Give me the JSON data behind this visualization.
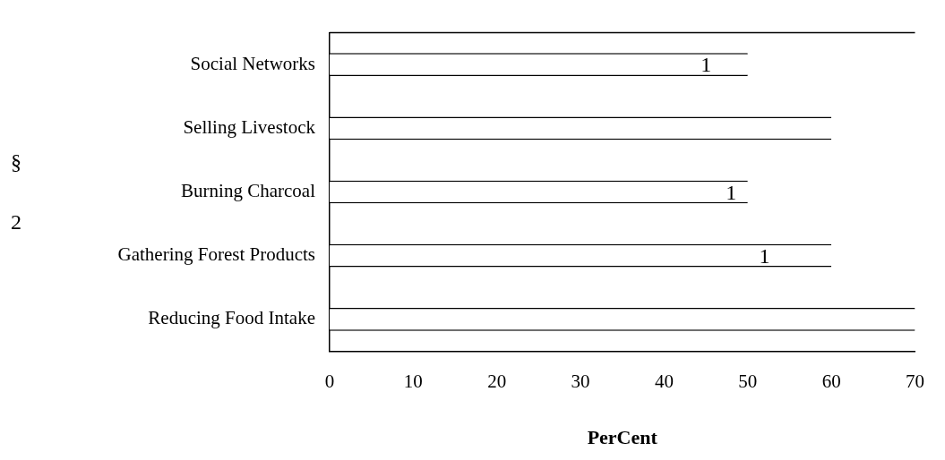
{
  "chart_data": {
    "type": "bar",
    "orientation": "horizontal",
    "xlabel": "PerCent",
    "categories": [
      "Social Networks",
      "Selling Livestock",
      "Burning Charcoal",
      "Gathering Forest Products",
      "Reducing Food Intake"
    ],
    "values": [
      50,
      60,
      50,
      60,
      70
    ],
    "color": "#ffffff",
    "xlim": [
      0,
      70
    ],
    "xticks": [
      0,
      10,
      20,
      30,
      40,
      50,
      60,
      70
    ],
    "grid": false,
    "legend": false,
    "annotations": [
      "§",
      "2",
      "1",
      "1",
      "1"
    ]
  }
}
